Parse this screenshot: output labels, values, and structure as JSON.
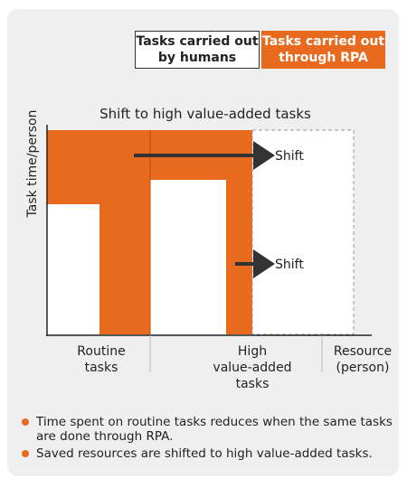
{
  "legend": {
    "humans": "Tasks carried out\nby humans",
    "rpa": "Tasks carried out\nthrough RPA"
  },
  "diagram": {
    "title": "Shift to high value-added tasks",
    "y_axis_label": "Task time/person",
    "x_axis_label_line1": "Resource",
    "x_axis_label_line2": "(person)",
    "routine_label_line1": "Routine",
    "routine_label_line2": "tasks",
    "high_label_line1": "High",
    "high_label_line2": "value-added",
    "high_label_line3": "tasks",
    "shift_top": "Shift",
    "shift_bottom": "Shift"
  },
  "bullets": [
    "Time spent on routine tasks reduces when the same tasks are done through RPA.",
    "Saved resources are shifted to high value-added tasks."
  ],
  "colors": {
    "rpa": "#e86a1e",
    "humans": "#ffffff",
    "arrow": "#333333"
  }
}
